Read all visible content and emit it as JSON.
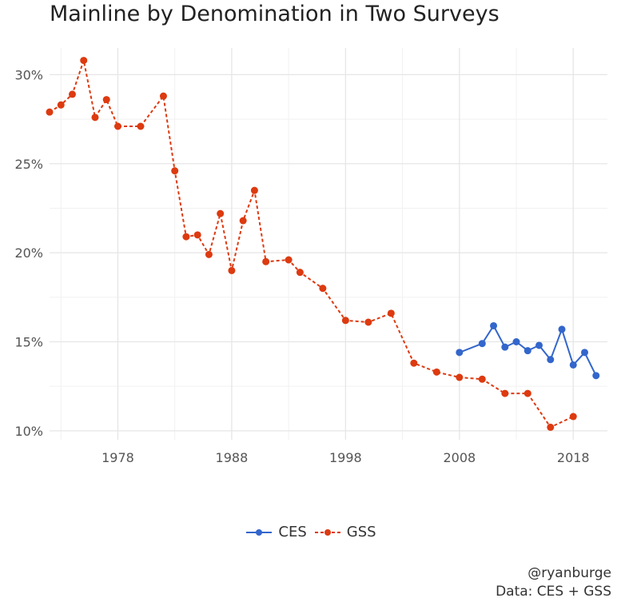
{
  "chart_data": {
    "type": "line",
    "title": "Mainline by Denomination in Two Surveys",
    "xlabel": "",
    "ylabel": "",
    "xlim": [
      1972,
      2021
    ],
    "ylim": [
      0.095,
      0.315
    ],
    "x_ticks": [
      1978,
      1988,
      1998,
      2008,
      2018
    ],
    "y_ticks": [
      0.1,
      0.15,
      0.2,
      0.25,
      0.3
    ],
    "y_tick_labels": [
      "10%",
      "15%",
      "20%",
      "25%",
      "30%"
    ],
    "x_tick_labels": [
      "1978",
      "1988",
      "1998",
      "2008",
      "2018"
    ],
    "grid": true,
    "legend_position": "bottom",
    "series": [
      {
        "name": "CES",
        "color": "#3366cc",
        "line_style": "solid",
        "x": [
          2008,
          2010,
          2011,
          2012,
          2013,
          2014,
          2015,
          2016,
          2017,
          2018,
          2019,
          2020
        ],
        "y": [
          0.144,
          0.149,
          0.159,
          0.147,
          0.15,
          0.145,
          0.148,
          0.14,
          0.157,
          0.137,
          0.144,
          0.131
        ]
      },
      {
        "name": "GSS",
        "color": "#dd3a10",
        "line_style": "dashed",
        "x": [
          1972,
          1973,
          1974,
          1975,
          1976,
          1977,
          1978,
          1980,
          1982,
          1983,
          1984,
          1985,
          1986,
          1987,
          1988,
          1989,
          1990,
          1991,
          1993,
          1994,
          1996,
          1998,
          2000,
          2002,
          2004,
          2006,
          2008,
          2010,
          2012,
          2014,
          2016,
          2018
        ],
        "y": [
          0.279,
          0.283,
          0.289,
          0.308,
          0.276,
          0.286,
          0.271,
          0.271,
          0.288,
          0.246,
          0.209,
          0.21,
          0.199,
          0.222,
          0.19,
          0.218,
          0.235,
          0.195,
          0.196,
          0.189,
          0.18,
          0.162,
          0.161,
          0.166,
          0.138,
          0.133,
          0.13,
          0.129,
          0.121,
          0.121,
          0.102,
          0.108
        ]
      }
    ],
    "caption": [
      "@ryanburge",
      "Data: CES + GSS"
    ]
  }
}
